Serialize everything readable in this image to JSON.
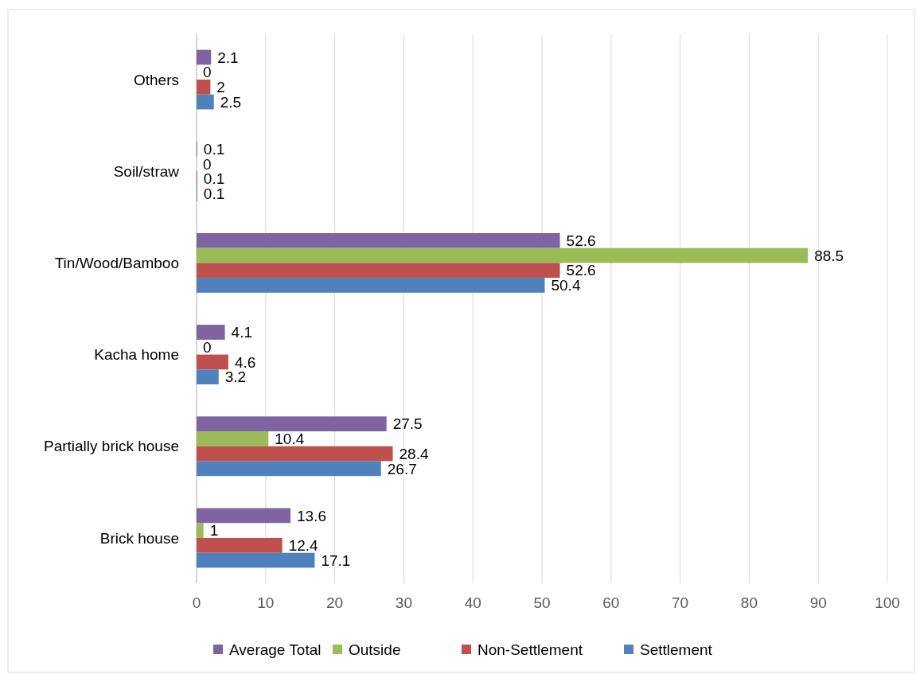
{
  "chart_data": {
    "type": "bar",
    "orientation": "horizontal",
    "categories": [
      "Others",
      "Soil/straw",
      "Tin/Wood/Bamboo",
      "Kacha home",
      "Partially brick house",
      "Brick house"
    ],
    "series": [
      {
        "name": "Average Total",
        "color": "#8064a2",
        "values": [
          2.1,
          0.1,
          52.6,
          4.1,
          27.5,
          13.6
        ]
      },
      {
        "name": "Outside",
        "color": "#9bbb59",
        "values": [
          0,
          0,
          88.5,
          0,
          10.4,
          1
        ]
      },
      {
        "name": "Non-Settlement",
        "color": "#c0504d",
        "values": [
          2,
          0.1,
          52.6,
          4.6,
          28.4,
          12.4
        ]
      },
      {
        "name": "Settlement",
        "color": "#4f81bd",
        "values": [
          2.5,
          0.1,
          50.4,
          3.2,
          26.7,
          17.1
        ]
      }
    ],
    "xlim": [
      0,
      100
    ],
    "xticks": [
      0,
      10,
      20,
      30,
      40,
      50,
      60,
      70,
      80,
      90,
      100
    ],
    "grid": "x",
    "legend": "bottom",
    "data_labels": true
  }
}
